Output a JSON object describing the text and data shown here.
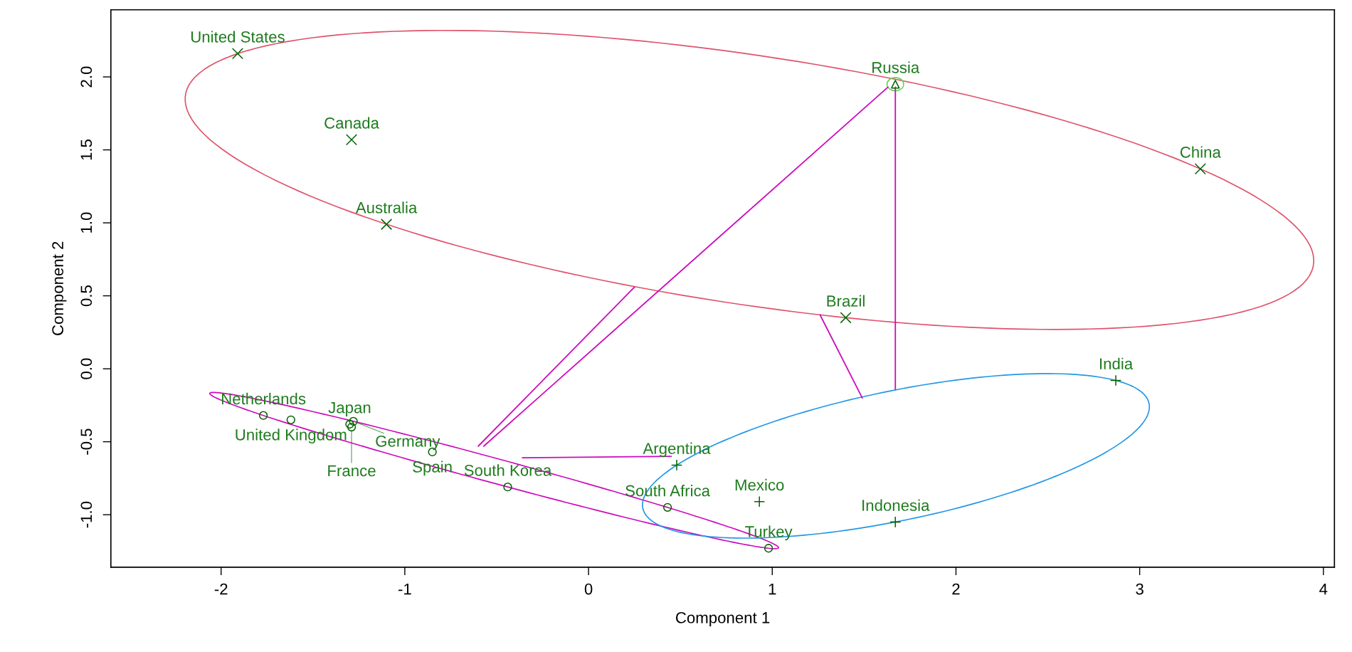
{
  "chart_data": {
    "type": "scatter",
    "xlabel": "Component 1",
    "ylabel": "Component 2",
    "xlim": [
      -2.6,
      4.06
    ],
    "ylim": [
      -1.36,
      2.46
    ],
    "xticks": [
      -2,
      -1,
      0,
      1,
      2,
      3,
      4
    ],
    "yticks": [
      {
        "value": -1,
        "label": "-1.0"
      },
      -0.5,
      {
        "value": 0,
        "label": "0.0"
      },
      0.5,
      {
        "value": 1,
        "label": "1.0"
      },
      1.5,
      {
        "value": 2,
        "label": "2.0"
      }
    ],
    "series": [
      {
        "type": "line",
        "color": "#cd0bbc",
        "x": [
          -0.6,
          0.25
        ],
        "values": [
          -0.53,
          0.56
        ]
      },
      {
        "type": "line",
        "color": "#cd0bbc",
        "x": [
          -0.57,
          1.63
        ],
        "values": [
          -0.53,
          1.93
        ]
      },
      {
        "type": "line",
        "color": "#cd0bbc",
        "x": [
          -0.36,
          0.45
        ],
        "values": [
          -0.61,
          -0.6
        ]
      },
      {
        "type": "line",
        "color": "#cd0bbc",
        "x": [
          1.67,
          1.67
        ],
        "values": [
          1.93,
          -0.14
        ]
      },
      {
        "type": "line",
        "color": "#cd0bbc",
        "x": [
          1.26,
          1.49
        ],
        "values": [
          0.37,
          -0.2
        ]
      },
      {
        "marker": "cross",
        "color": "#006400",
        "x": [
          -1.91,
          -1.29,
          -1.1,
          3.33,
          1.4
        ],
        "values": [
          2.16,
          1.57,
          0.99,
          1.37,
          0.35
        ]
      },
      {
        "marker": "triangle",
        "color": "#006400",
        "x": [
          1.67
        ],
        "values": [
          1.95
        ]
      },
      {
        "marker": "circle",
        "color": "#006400",
        "x": [
          -1.77,
          -1.62,
          -1.3,
          -1.28,
          -1.29,
          -0.85,
          -0.44,
          0.43,
          0.98
        ],
        "values": [
          -0.32,
          -0.35,
          -0.38,
          -0.36,
          -0.4,
          -0.57,
          -0.81,
          -0.95,
          -1.23
        ]
      },
      {
        "marker": "plus",
        "color": "#006400",
        "x": [
          0.48,
          0.93,
          1.67,
          2.87
        ],
        "values": [
          -0.66,
          -0.91,
          -1.05,
          -0.08
        ]
      }
    ],
    "annotations": [
      {
        "text": "United States",
        "x": -1.91,
        "y": 2.16
      },
      {
        "text": "Canada",
        "x": -1.29,
        "y": 1.57
      },
      {
        "text": "Australia",
        "x": -1.1,
        "y": 0.99
      },
      {
        "text": "China",
        "x": 3.33,
        "y": 1.37
      },
      {
        "text": "Brazil",
        "x": 1.4,
        "y": 0.35
      },
      {
        "text": "Russia",
        "x": 1.67,
        "y": 1.95
      },
      {
        "text": "Netherlands",
        "x": -1.77,
        "y": -0.32
      },
      {
        "text": "United Kingdom",
        "x": -1.62,
        "y": -0.35
      },
      {
        "text": "Japan",
        "x": -1.3,
        "y": -0.38
      },
      {
        "text": "Germany",
        "x": -1.28,
        "y": -0.36
      },
      {
        "text": "France",
        "x": -1.29,
        "y": -0.4
      },
      {
        "text": "Spain",
        "x": -0.85,
        "y": -0.57
      },
      {
        "text": "South Korea",
        "x": -0.44,
        "y": -0.81
      },
      {
        "text": "South Africa",
        "x": 0.43,
        "y": -0.95
      },
      {
        "text": "Turkey",
        "x": 0.98,
        "y": -1.23
      },
      {
        "text": "Argentina",
        "x": 0.48,
        "y": -0.66
      },
      {
        "text": "Mexico",
        "x": 0.93,
        "y": -0.91
      },
      {
        "text": "Indonesia",
        "x": 1.67,
        "y": -1.05
      },
      {
        "text": "India",
        "x": 2.87,
        "y": -0.08
      }
    ]
  }
}
